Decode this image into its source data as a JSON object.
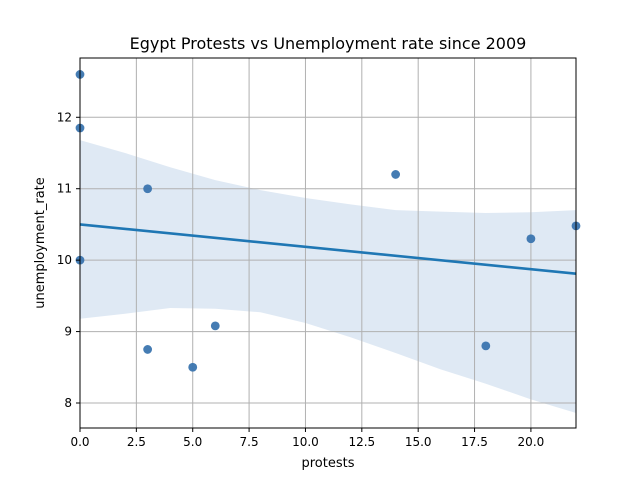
{
  "chart_data": {
    "type": "scatter",
    "title": "Egypt Protests vs Unemployment rate since 2009",
    "xlabel": "protests",
    "ylabel": "unemployment_rate",
    "xlim": [
      0,
      22
    ],
    "ylim": [
      7.65,
      12.83
    ],
    "xticks": [
      0,
      2.5,
      5,
      7.5,
      10,
      12.5,
      15,
      17.5,
      20
    ],
    "xtick_labels": [
      "0.0",
      "2.5",
      "5.0",
      "7.5",
      "10.0",
      "12.5",
      "15.0",
      "17.5",
      "20.0"
    ],
    "yticks": [
      8,
      9,
      10,
      11,
      12
    ],
    "ytick_labels": [
      "8",
      "9",
      "10",
      "11",
      "12"
    ],
    "grid": true,
    "points": [
      {
        "x": 0,
        "y": 12.6
      },
      {
        "x": 0,
        "y": 11.85
      },
      {
        "x": 0,
        "y": 10.0
      },
      {
        "x": 3,
        "y": 11.0
      },
      {
        "x": 3,
        "y": 8.75
      },
      {
        "x": 5,
        "y": 8.5
      },
      {
        "x": 6,
        "y": 9.08
      },
      {
        "x": 14,
        "y": 11.2
      },
      {
        "x": 18,
        "y": 8.8
      },
      {
        "x": 20,
        "y": 10.3
      },
      {
        "x": 22,
        "y": 10.48
      }
    ],
    "regression": {
      "x": [
        0,
        22
      ],
      "y": [
        10.5,
        9.81
      ]
    },
    "confidence_band": {
      "x": [
        0,
        2,
        4,
        6,
        8,
        10,
        12,
        14,
        16,
        18,
        20,
        22
      ],
      "upper": [
        11.68,
        11.5,
        11.3,
        11.12,
        10.98,
        10.87,
        10.78,
        10.7,
        10.68,
        10.66,
        10.67,
        10.7
      ],
      "lower": [
        9.18,
        9.25,
        9.33,
        9.32,
        9.27,
        9.12,
        8.92,
        8.7,
        8.47,
        8.27,
        8.05,
        7.86
      ]
    },
    "colors": {
      "points": "#3b75af",
      "line": "#1f77b4",
      "band": "#dce7f3",
      "grid": "#b0b0b0"
    }
  }
}
